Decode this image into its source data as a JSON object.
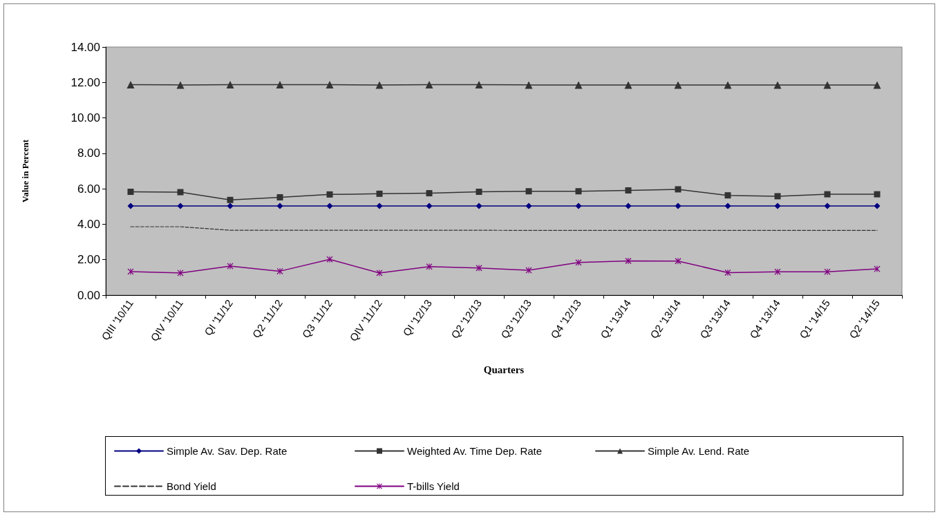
{
  "chart_data": {
    "type": "line",
    "xlabel": "Quarters",
    "ylabel": "Value in Percent",
    "categories": [
      "QIII '10/11",
      "QIV '10/11",
      "QI '11/12",
      "Q2 '11/12",
      "Q3 '11/12",
      "QIV '11/12",
      "QI '12/13",
      "Q2 '12/13",
      "Q3 '12/13",
      "Q4 '12/13",
      "Q1 '13/14",
      "Q2 '13/14",
      "Q3 '13/14",
      "Q4 '13/14",
      "Q1 '14/15",
      "Q2 '14/15"
    ],
    "series": [
      {
        "name": "Simple Av. Sav. Dep. Rate",
        "color": "#000080",
        "marker": "diamond",
        "values": [
          5.03,
          5.03,
          5.03,
          5.03,
          5.03,
          5.03,
          5.03,
          5.03,
          5.03,
          5.03,
          5.03,
          5.03,
          5.03,
          5.03,
          5.03,
          5.03
        ]
      },
      {
        "name": "Weighted Av. Time Dep. Rate",
        "color": "#333333",
        "marker": "square",
        "values": [
          5.83,
          5.81,
          5.37,
          5.52,
          5.68,
          5.72,
          5.75,
          5.83,
          5.86,
          5.86,
          5.91,
          5.97,
          5.63,
          5.58,
          5.69,
          5.69
        ]
      },
      {
        "name": "Simple Av. Lend. Rate",
        "color": "#333333",
        "marker": "triangle",
        "values": [
          11.87,
          11.86,
          11.87,
          11.87,
          11.87,
          11.86,
          11.87,
          11.87,
          11.86,
          11.86,
          11.86,
          11.86,
          11.86,
          11.86,
          11.86,
          11.86
        ]
      },
      {
        "name": "Bond Yield",
        "color": "#333333",
        "marker": "none",
        "line_style": "dashed",
        "values": [
          3.86,
          3.86,
          3.66,
          3.66,
          3.66,
          3.66,
          3.66,
          3.66,
          3.65,
          3.65,
          3.65,
          3.65,
          3.65,
          3.65,
          3.65,
          3.65
        ]
      },
      {
        "name": "T-bills Yield",
        "color": "#800080",
        "marker": "cross",
        "values": [
          1.33,
          1.25,
          1.64,
          1.35,
          2.02,
          1.25,
          1.61,
          1.53,
          1.4,
          1.84,
          1.93,
          1.92,
          1.27,
          1.32,
          1.32,
          1.48
        ]
      }
    ],
    "ylim": [
      0,
      14
    ],
    "yticks": [
      {
        "value": 0,
        "label": "0.00"
      },
      {
        "value": 2,
        "label": "2.00"
      },
      {
        "value": 4,
        "label": "4.00"
      },
      {
        "value": 6,
        "label": "6.00"
      },
      {
        "value": 8,
        "label": "8.00"
      },
      {
        "value": 10,
        "label": "10.00"
      },
      {
        "value": 12,
        "label": "12.00"
      },
      {
        "value": 14,
        "label": "14.00"
      }
    ],
    "grid": false,
    "legend": "bottom",
    "line_style": "solid"
  }
}
